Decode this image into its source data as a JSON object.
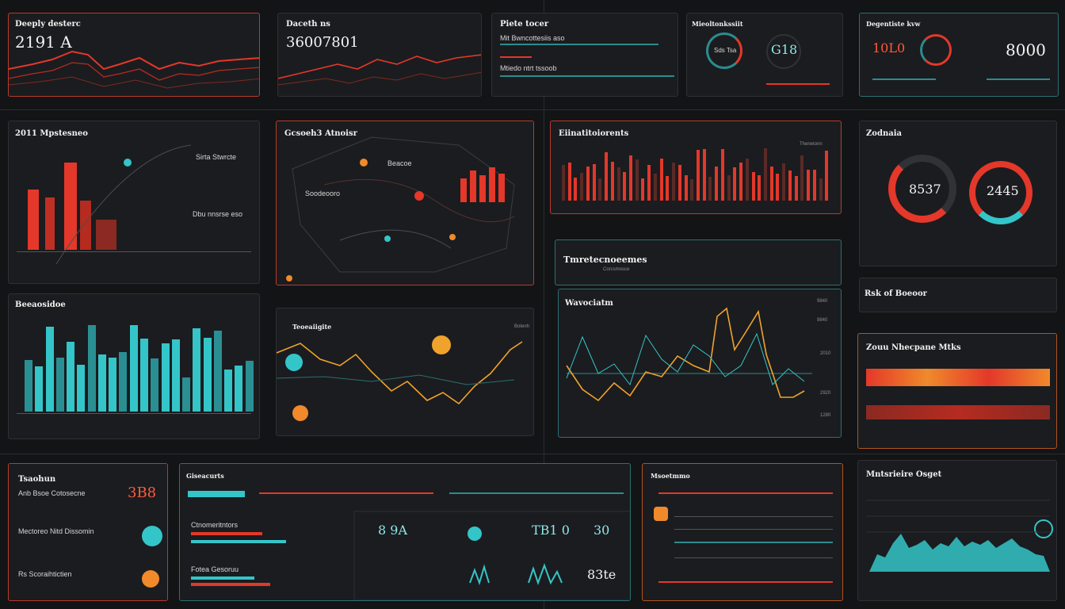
{
  "colors": {
    "background": "#131416",
    "panel": "#1b1c1f",
    "red": "#e3382a",
    "orange": "#f08a2b",
    "teal": "#34c5c9",
    "amber": "#f0a32c"
  },
  "p1": {
    "title": "Deeply desterc",
    "value": "2191 A"
  },
  "p2": {
    "title": "Daceth ns",
    "value": "36007801"
  },
  "p3": {
    "title": "Piete tocer",
    "label1": "Mit Bwncottesiis aso",
    "label2": "Mtiedo ntrt tssoob"
  },
  "p4": {
    "title": "Mieoltonkssiit",
    "gauge1": "Sds Tsa",
    "gauge2": "G18"
  },
  "p5": {
    "title": "Degentiste kvw",
    "value1": "10L0",
    "value2": "8000"
  },
  "p6": {
    "title": "2011 Mpstesneo",
    "label1": "Sirta Stwrcte",
    "label2": "Dbu nnsrse eso"
  },
  "p7": {
    "title": "Gcsoeh3 Atnoisr",
    "label1": "Soodeooro",
    "label2": "Beacoe"
  },
  "p8": {
    "title": "Eiinatitoiorents",
    "right": "Thenetonn"
  },
  "p9": {
    "title": "Zodnaia",
    "value1": "8537",
    "value2": "2445"
  },
  "p10": {
    "title": "Tmretecnoeemes",
    "sub": "Corcsmosce"
  },
  "p11": {
    "title": "Beeaosidoe"
  },
  "p12": {
    "title": "Teoeaiigite",
    "right": "Botenh"
  },
  "p13": {
    "title": "Wavociatm",
    "ticks": [
      "9840",
      "9840",
      "2010",
      "2920",
      "1280"
    ]
  },
  "p14": {
    "title": "Rsk of Boeoor"
  },
  "p15": {
    "title": "Zouu Nhecpane Mtks"
  },
  "p16": {
    "title": "Tsaohun",
    "label1": "Anb Bsoe Cotosecne",
    "label2": "Mectoreo Nitd Dissomin",
    "label3": "Rs Scoraihtictien",
    "value": "3B8"
  },
  "p17": {
    "title": "Giseacurts",
    "label1": "Ctnomeritntors",
    "label2": "Fotea Gesoruu",
    "v1": "8 9A",
    "v2": "TB1 0",
    "v3": "30",
    "v4": "83te"
  },
  "p18": {
    "title": "Msoetmmo"
  },
  "p19": {
    "title": "Mntsrieire Osget"
  }
}
